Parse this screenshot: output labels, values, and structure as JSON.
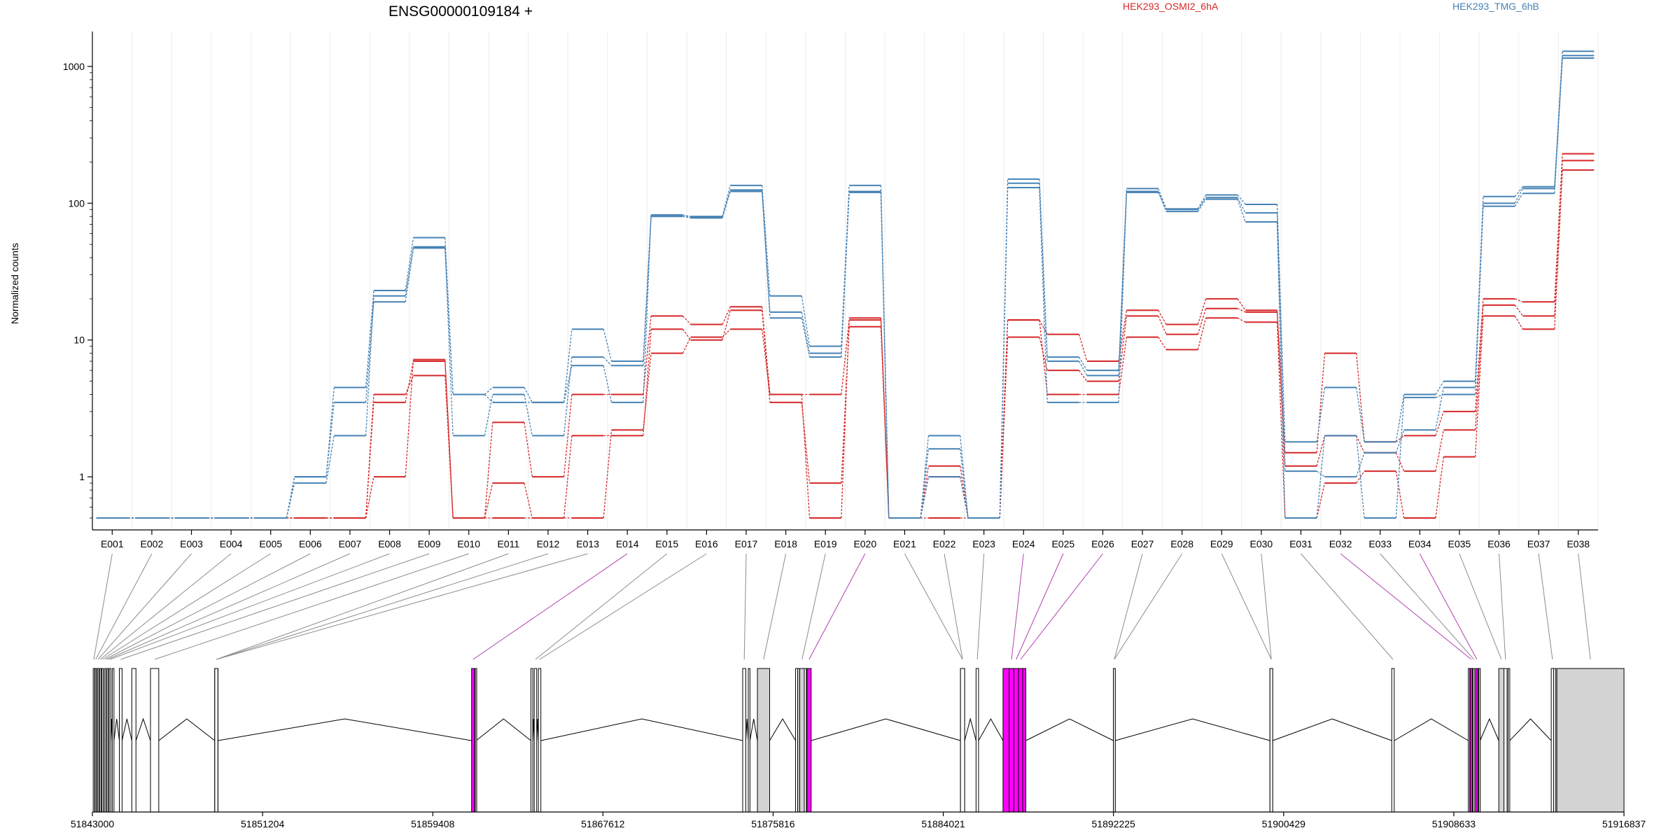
{
  "chart_data": {
    "type": "line",
    "title": "ENSG00000109184 +",
    "ylabel": "Normalized counts",
    "y_scale": "log",
    "y_ticks": [
      1,
      10,
      100,
      1000
    ],
    "y_tick_labels": [
      "1",
      "10",
      "100",
      "1000"
    ],
    "ylim": [
      0.5,
      1800
    ],
    "grid_vertical": true,
    "legend_placement": "top",
    "categories": [
      "E001",
      "E002",
      "E003",
      "E004",
      "E005",
      "E006",
      "E007",
      "E008",
      "E009",
      "E010",
      "E011",
      "E012",
      "E013",
      "E014",
      "E015",
      "E016",
      "E017",
      "E018",
      "E019",
      "E020",
      "E021",
      "E022",
      "E023",
      "E024",
      "E025",
      "E026",
      "E027",
      "E028",
      "E029",
      "E030",
      "E031",
      "E032",
      "E033",
      "E034",
      "E035",
      "E036",
      "E037",
      "E038"
    ],
    "series": [
      {
        "name": "HEK293_OSMI2_6hA",
        "color": "#d62728",
        "group": "HEK293_OSMI2_6hA",
        "values": [
          0.5,
          0.5,
          0.5,
          0.5,
          0.5,
          0.5,
          0.5,
          3.5,
          7.0,
          0.5,
          2.5,
          1.0,
          4.0,
          4.0,
          15.0,
          13.0,
          17.5,
          4.0,
          4.0,
          14.0,
          0.5,
          1.2,
          0.5,
          14.0,
          11.0,
          7.0,
          16.5,
          13.0,
          20.0,
          16.5,
          1.5,
          8.0,
          1.8,
          2.0,
          3.0,
          20.0,
          19.0,
          230
        ]
      },
      {
        "name": "",
        "color": "#d62728",
        "group": "HEK293_OSMI2_6hA",
        "values": [
          0.5,
          0.5,
          0.5,
          0.5,
          0.5,
          0.5,
          0.5,
          4.0,
          5.5,
          0.5,
          0.9,
          0.5,
          2.0,
          2.0,
          12.0,
          10.0,
          16.5,
          3.5,
          0.9,
          12.5,
          0.5,
          1.0,
          0.5,
          10.5,
          6.0,
          5.0,
          15.0,
          11.0,
          17.0,
          16.0,
          1.2,
          2.0,
          1.5,
          1.1,
          2.2,
          18.0,
          15.0,
          205
        ]
      },
      {
        "name": "",
        "color": "#d62728",
        "group": "HEK293_OSMI2_6hA",
        "values": [
          0.5,
          0.5,
          0.5,
          0.5,
          0.5,
          0.5,
          0.5,
          1.0,
          7.2,
          0.5,
          0.5,
          0.5,
          0.5,
          2.2,
          8.0,
          10.5,
          12.0,
          4.0,
          0.5,
          14.5,
          0.5,
          0.5,
          0.5,
          14.0,
          4.0,
          4.0,
          10.5,
          8.5,
          14.5,
          13.5,
          0.5,
          0.9,
          1.1,
          0.5,
          1.4,
          15.0,
          12.0,
          175
        ]
      },
      {
        "name": "HEK293_TMG_6hB",
        "color": "#4682b4",
        "group": "HEK293_TMG_6hB",
        "values": [
          0.5,
          0.5,
          0.5,
          0.5,
          0.5,
          1.0,
          4.5,
          23,
          56,
          4.0,
          4.5,
          3.5,
          12,
          7.0,
          82,
          80,
          135,
          21,
          9.0,
          135,
          0.5,
          2.0,
          0.5,
          150,
          7.5,
          6.0,
          128,
          91,
          115,
          98,
          1.8,
          4.5,
          1.8,
          4.0,
          5.0,
          112,
          132,
          1290
        ]
      },
      {
        "name": "",
        "color": "#4682b4",
        "group": "HEK293_TMG_6hB",
        "values": [
          0.5,
          0.5,
          0.5,
          0.5,
          0.5,
          0.9,
          2.0,
          21,
          48,
          2.0,
          4.0,
          2.0,
          7.5,
          6.5,
          80,
          78,
          125,
          16,
          8.0,
          120,
          0.5,
          1.6,
          0.5,
          140,
          7.0,
          5.5,
          120,
          90,
          110,
          85,
          1.1,
          1.0,
          1.5,
          2.2,
          4.5,
          100,
          128,
          1200
        ]
      },
      {
        "name": "",
        "color": "#4682b4",
        "group": "HEK293_TMG_6hB",
        "values": [
          0.5,
          0.5,
          0.5,
          0.5,
          0.5,
          1.0,
          3.5,
          19,
          47,
          4.0,
          3.5,
          3.5,
          6.5,
          3.5,
          82,
          79,
          122,
          14.5,
          7.5,
          122,
          0.5,
          1.0,
          0.5,
          130,
          3.5,
          3.5,
          122,
          87,
          107,
          73,
          0.5,
          2.0,
          0.5,
          3.8,
          4.0,
          95,
          118,
          1150
        ]
      }
    ],
    "gene_model": {
      "x_ticks": [
        51843000,
        51851204,
        51859408,
        51867612,
        51875816,
        51884021,
        51892225,
        51900429,
        51908633,
        51916837
      ],
      "x_tick_labels": [
        "51843000",
        "51851204",
        "51859408",
        "51867612",
        "51875816",
        "51884021",
        "51892225",
        "51900429",
        "51908633",
        "51916837"
      ],
      "xlim": [
        51843000,
        51916837
      ],
      "highlight_color": "#ff00ff",
      "exon_fill": "#d3d3d3",
      "exons": [
        {
          "id": "E001",
          "start": 51843040,
          "end": 51843090
        },
        {
          "id": "E002",
          "start": 51843130,
          "end": 51843190
        },
        {
          "id": "E003",
          "start": 51843240,
          "end": 51843300
        },
        {
          "id": "E004",
          "start": 51843350,
          "end": 51843410
        },
        {
          "id": "E005",
          "start": 51843450,
          "end": 51843520
        },
        {
          "id": "E006",
          "start": 51843580,
          "end": 51843640
        },
        {
          "id": "E007",
          "start": 51843700,
          "end": 51843760
        },
        {
          "id": "E008",
          "start": 51843810,
          "end": 51843890
        },
        {
          "id": "E009",
          "start": 51844300,
          "end": 51844430
        },
        {
          "id": "E010",
          "start": 51845800,
          "end": 51846200
        },
        {
          "id": "E011",
          "start": 51848900,
          "end": 51849050
        },
        {
          "id": "E012",
          "start": 51848900,
          "end": 51849050
        },
        {
          "id": "E013",
          "start": 51848900,
          "end": 51849050
        },
        {
          "id": "E014",
          "start": 51861280,
          "end": 51861420,
          "highlight": true
        },
        {
          "id": "E015",
          "start": 51864300,
          "end": 51864420
        },
        {
          "id": "E016",
          "start": 51864500,
          "end": 51864620
        },
        {
          "id": "E017",
          "start": 51874350,
          "end": 51874500
        },
        {
          "id": "E018",
          "start": 51875060,
          "end": 51875650,
          "shaded": true
        },
        {
          "id": "E019",
          "start": 51877100,
          "end": 51877320,
          "shaded": true
        },
        {
          "id": "E020",
          "start": 51877450,
          "end": 51877650,
          "highlight": true
        },
        {
          "id": "E021",
          "start": 51884850,
          "end": 51885050
        },
        {
          "id": "E022",
          "start": 51884850,
          "end": 51885050
        },
        {
          "id": "E023",
          "start": 51885600,
          "end": 51885720
        },
        {
          "id": "E024",
          "start": 51887200,
          "end": 51887420,
          "highlight": true
        },
        {
          "id": "E025",
          "start": 51887420,
          "end": 51887650,
          "highlight": true
        },
        {
          "id": "E026",
          "start": 51887650,
          "end": 51887850,
          "highlight": true
        },
        {
          "id": "E027",
          "start": 51892220,
          "end": 51892310
        },
        {
          "id": "E028",
          "start": 51892220,
          "end": 51892310
        },
        {
          "id": "E029",
          "start": 51899770,
          "end": 51899900
        },
        {
          "id": "E030",
          "start": 51899770,
          "end": 51899900
        },
        {
          "id": "E031",
          "start": 51905640,
          "end": 51905760
        },
        {
          "id": "E032",
          "start": 51909420,
          "end": 51909530,
          "highlight": true
        },
        {
          "id": "E033",
          "start": 51909560,
          "end": 51909640
        },
        {
          "id": "E034",
          "start": 51909690,
          "end": 51909800,
          "highlight": true
        },
        {
          "id": "E035",
          "start": 51910800,
          "end": 51911050,
          "shaded": true
        },
        {
          "id": "E036",
          "start": 51911050,
          "end": 51911200
        },
        {
          "id": "E037",
          "start": 51913330,
          "end": 51913450
        },
        {
          "id": "E038",
          "start": 51913600,
          "end": 51916837,
          "shaded": true
        }
      ],
      "extra_exons": [
        {
          "start": 51844900,
          "end": 51845100
        },
        {
          "start": 51843960,
          "end": 51844040
        },
        {
          "start": 51861460,
          "end": 51861500
        },
        {
          "start": 51864140,
          "end": 51864230
        },
        {
          "start": 51874620,
          "end": 51874700
        },
        {
          "start": 51876900,
          "end": 51877000
        },
        {
          "start": 51877000,
          "end": 51877100,
          "shaded": true
        },
        {
          "start": 51877320,
          "end": 51877420
        },
        {
          "start": 51886900,
          "end": 51887200,
          "highlight": true
        },
        {
          "start": 51887850,
          "end": 51888000,
          "highlight": true
        },
        {
          "start": 51909330,
          "end": 51909390
        },
        {
          "start": 51909840,
          "end": 51909900
        },
        {
          "start": 51911250,
          "end": 51911330
        },
        {
          "start": 51913450,
          "end": 51913550
        }
      ]
    }
  },
  "legend": [
    {
      "name": "HEK293_OSMI2_6hA",
      "color": "#d62728"
    },
    {
      "name": "HEK293_TMG_6hB",
      "color": "#4682b4"
    }
  ]
}
